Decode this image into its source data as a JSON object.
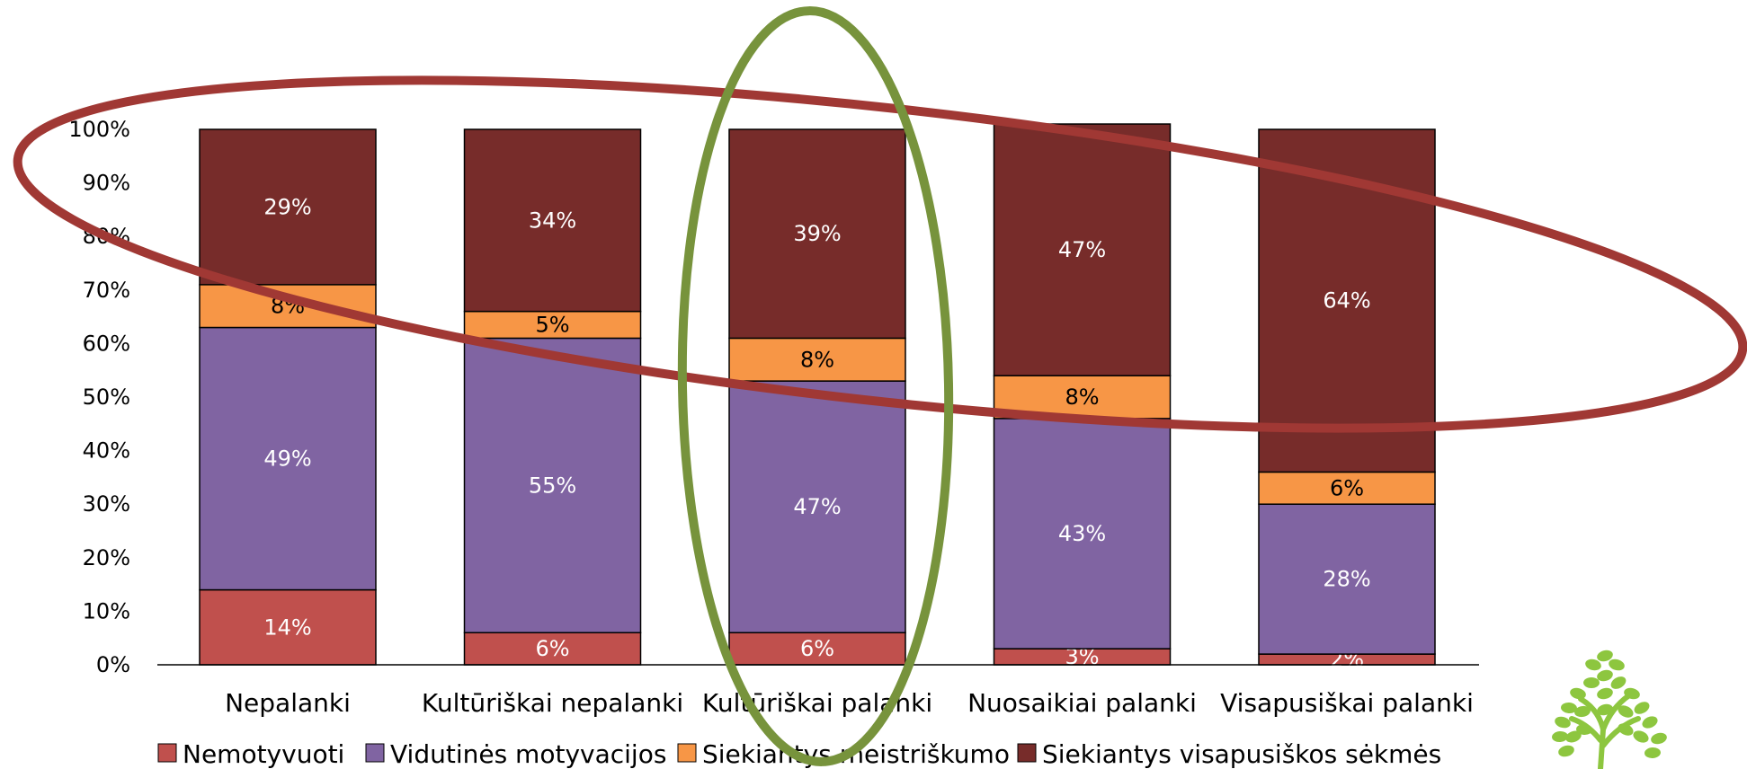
{
  "chart_data": {
    "type": "bar",
    "stacked": true,
    "categories": [
      "Nepalanki",
      "Kultūriškai nepalanki",
      "Kultūriškai palanki",
      "Nuosaikiai palanki",
      "Visapusiškai palanki"
    ],
    "series": [
      {
        "name": "Nemotyvuoti",
        "values": [
          14,
          6,
          6,
          3,
          2
        ],
        "labels": [
          "14%",
          "6%",
          "6%",
          "3%",
          "2%"
        ],
        "color": "#C0504D",
        "label_color": "#ffffff"
      },
      {
        "name": "Vidutinės motyvacijos",
        "values": [
          49,
          55,
          47,
          43,
          28
        ],
        "labels": [
          "49%",
          "55%",
          "47%",
          "43%",
          "28%"
        ],
        "color": "#8064A2",
        "label_color": "#ffffff"
      },
      {
        "name": "Siekiantys meistriškumo",
        "values": [
          8,
          5,
          8,
          8,
          6
        ],
        "labels": [
          "8%",
          "5%",
          "8%",
          "8%",
          "6%"
        ],
        "color": "#F79646",
        "label_color": "#000000"
      },
      {
        "name": "Siekiantys visapusiškos sėkmės",
        "values": [
          29,
          34,
          39,
          47,
          64
        ],
        "labels": [
          "29%",
          "34%",
          "39%",
          "47%",
          "64%"
        ],
        "color": "#772C2A",
        "label_color": "#ffffff"
      }
    ],
    "y_ticks": [
      "0%",
      "10%",
      "20%",
      "30%",
      "40%",
      "50%",
      "60%",
      "70%",
      "80%",
      "90%",
      "100%"
    ],
    "ylim": [
      0,
      100
    ],
    "grid": false,
    "legend_position": "bottom",
    "annotations": [
      {
        "shape": "ellipse",
        "color": "#A03834",
        "highlights": "Siekiantys visapusiškos sėkmės"
      },
      {
        "shape": "ellipse",
        "color": "#77933C",
        "highlights": "Kultūriškai palanki"
      }
    ]
  },
  "decoration": {
    "logo": "tree-logo",
    "logo_color": "#8DC63F"
  }
}
